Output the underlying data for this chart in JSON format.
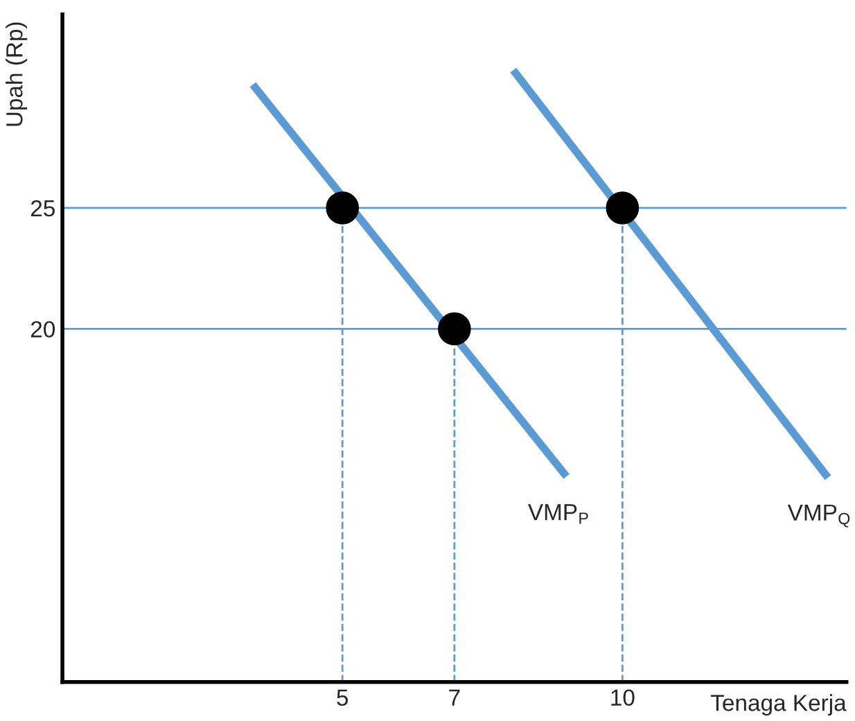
{
  "chart_data": {
    "type": "line",
    "xlabel": "Tenaga Kerja",
    "ylabel": "Upah (Rp)",
    "xlim": [
      0,
      14
    ],
    "ylim": [
      5.4,
      33
    ],
    "xticks": [
      5,
      7,
      10
    ],
    "yticks": [
      20,
      25
    ],
    "grid": false,
    "legend": false,
    "marker": "none",
    "line_style": "solid",
    "series": [
      {
        "name": "VMP$_{P}$",
        "color": "#5b9bd5",
        "x": [
          3.4,
          9.0
        ],
        "values": [
          30.1,
          13.9
        ]
      },
      {
        "name": "VMP$_{Q}$",
        "color": "#5b9bd5",
        "x": [
          8.05,
          13.67
        ],
        "values": [
          30.7,
          13.85
        ]
      },
      {
        "type": "scatter",
        "color": "#000000",
        "marker": "circle",
        "x": [
          5,
          7,
          10
        ],
        "values": [
          25,
          20,
          25
        ]
      }
    ],
    "ref_lines": [
      {
        "axis": "y",
        "value": 25,
        "color": "#5b9bd5",
        "line_style": "solid"
      },
      {
        "axis": "y",
        "value": 20,
        "color": "#5b9bd5",
        "line_style": "solid"
      },
      {
        "axis": "x",
        "value": 5,
        "color": "#5b9bd5",
        "line_style": "dashed"
      },
      {
        "axis": "x",
        "value": 7,
        "color": "#5b9bd5",
        "line_style": "dashed"
      },
      {
        "axis": "x",
        "value": 10,
        "color": "#5b9bd5",
        "line_style": "dashed"
      }
    ]
  }
}
